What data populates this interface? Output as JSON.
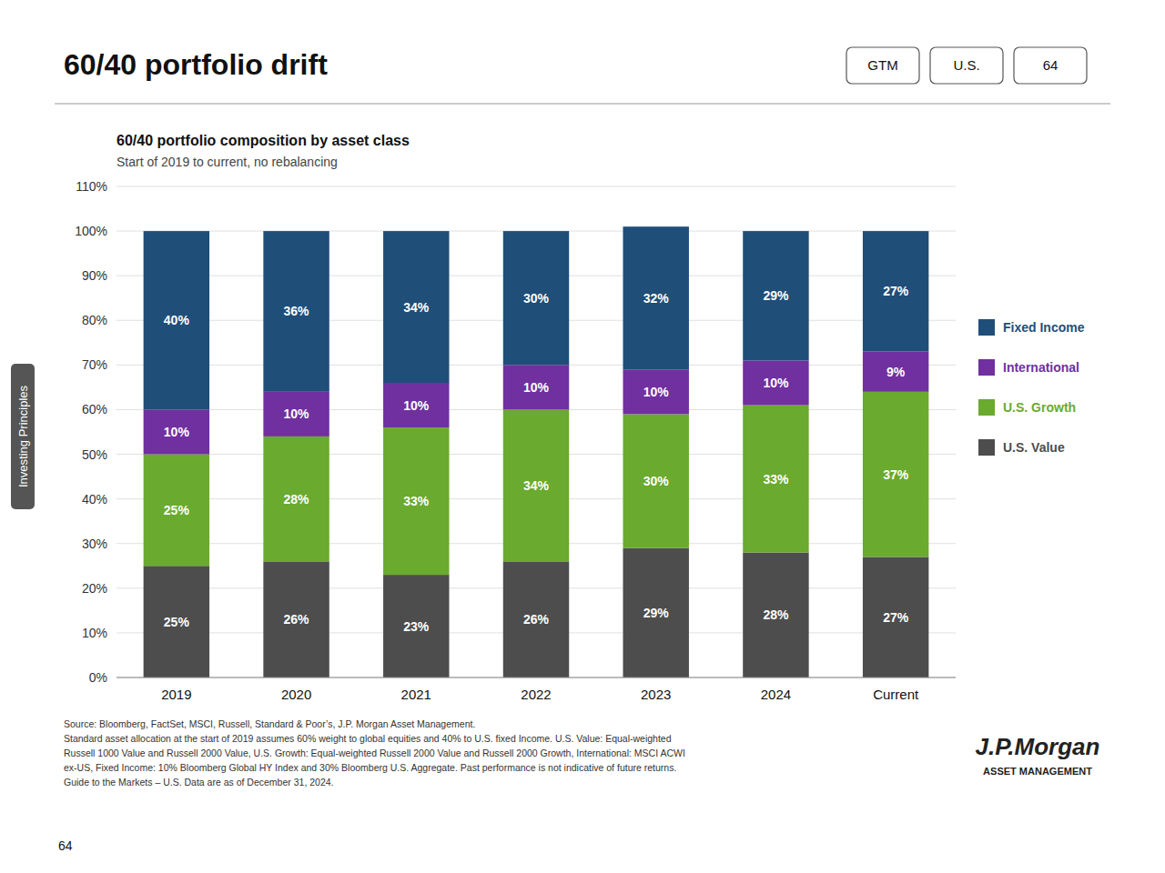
{
  "chart_data": {
    "type": "bar",
    "stacked": true,
    "data_labels": true,
    "grid": true,
    "title": "60/40 portfolio drift",
    "subtitle": "60/40 portfolio composition by asset class",
    "annotations": [
      "Start of 2019 to current, no rebalancing",
      "Source: Bloomberg, FactSet, MSCI, Russell, Standard & Poor’s, J.P. Morgan Asset Management.\nStandard asset allocation at the start of 2019 assumes 60% weight to global equities and 40% to U.S. fixed Income. U.S. Value: Equal-weighted\nRussell 1000 Value and Russell 2000 Value, U.S. Growth: Equal-weighted Russell 2000 Value and Russell 2000 Growth, International: MSCI ACWI\nex-US, Fixed Income: 10% Bloomberg Global HY Index and 30% Bloomberg U.S. Aggregate. Past performance is not indicative of future returns.\nGuide to the Markets – U.S. Data are as of December 31, 2024.",
      "GTM",
      "U.S.",
      "64",
      "J.P.Morgan",
      "ASSET MANAGEMENT",
      "Investing Principles",
      "64"
    ],
    "categories": [
      "2019",
      "2020",
      "2021",
      "2022",
      "2023",
      "2024",
      "Current"
    ],
    "series": [
      {
        "name": "U.S. Value",
        "color": "#4d4d4d",
        "values": [
          25,
          26,
          23,
          26,
          29,
          28,
          27
        ],
        "value_labels": [
          "25%",
          "26%",
          "23%",
          "26%",
          "29%",
          "28%",
          "27%"
        ]
      },
      {
        "name": "U.S. Growth",
        "color": "#6aaa2e",
        "values": [
          25,
          28,
          33,
          34,
          30,
          33,
          37
        ],
        "value_labels": [
          "25%",
          "28%",
          "33%",
          "34%",
          "30%",
          "33%",
          "37%"
        ]
      },
      {
        "name": "International",
        "color": "#7030a0",
        "values": [
          10,
          10,
          10,
          10,
          10,
          10,
          9
        ],
        "value_labels": [
          "10%",
          "10%",
          "10%",
          "10%",
          "10%",
          "10%",
          "9%"
        ]
      },
      {
        "name": "Fixed Income",
        "color": "#1f4e79",
        "values": [
          40,
          36,
          34,
          30,
          32,
          29,
          27
        ],
        "value_labels": [
          "40%",
          "36%",
          "34%",
          "30%",
          "32%",
          "29%",
          "27%"
        ]
      }
    ],
    "ylim": [
      0,
      110
    ],
    "yticks": [
      {
        "value": 0,
        "label": "0%"
      },
      {
        "value": 10,
        "label": "10%"
      },
      {
        "value": 20,
        "label": "20%"
      },
      {
        "value": 30,
        "label": "30%"
      },
      {
        "value": 40,
        "label": "40%"
      },
      {
        "value": 50,
        "label": "50%"
      },
      {
        "value": 60,
        "label": "60%"
      },
      {
        "value": 70,
        "label": "70%"
      },
      {
        "value": 80,
        "label": "80%"
      },
      {
        "value": 90,
        "label": "90%"
      },
      {
        "value": 100,
        "label": "100%"
      },
      {
        "value": 110,
        "label": "110%"
      }
    ]
  }
}
